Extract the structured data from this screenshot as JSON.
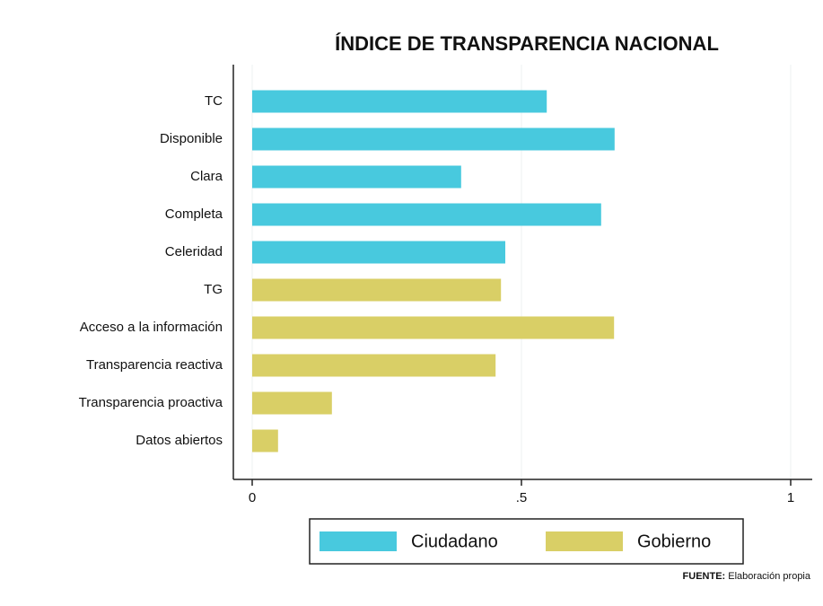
{
  "chart_data": {
    "type": "barh",
    "title": "ÍNDICE DE TRANSPARENCIA NACIONAL",
    "categories": [
      "TC",
      "Disponible",
      "Clara",
      "Completa",
      "Celeridad",
      "TG",
      "Acceso a la información",
      "Transparencia reactiva",
      "Transparencia proactiva",
      "Datos abiertos"
    ],
    "series": [
      {
        "name": "Ciudadano",
        "color": "#48c9de",
        "values": [
          0.547,
          0.673,
          0.388,
          0.648,
          0.47,
          null,
          null,
          null,
          null,
          null
        ]
      },
      {
        "name": "Gobierno",
        "color": "#d9cf66",
        "values": [
          null,
          null,
          null,
          null,
          null,
          0.462,
          0.672,
          0.452,
          0.148,
          0.048
        ]
      }
    ],
    "xlim": [
      -0.035,
      1.04
    ],
    "xticks": [
      0,
      {
        "value": 0.5,
        "label": ".5"
      },
      1
    ],
    "grid": true,
    "legend": "bottom",
    "source_label": "FUENTE:",
    "source": "Elaboración propia"
  }
}
